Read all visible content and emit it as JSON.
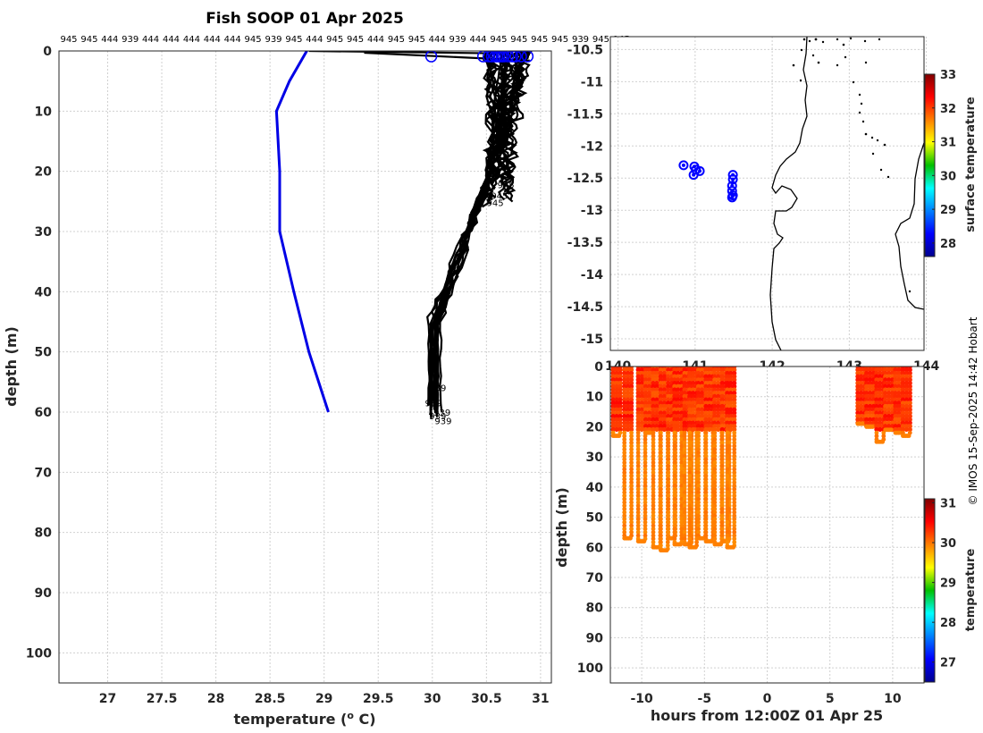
{
  "chart_data": [
    {
      "id": "profiles",
      "type": "line",
      "title": "Fish SOOP 01 Apr 2025",
      "xlabel": "temperature (",
      "xlabel_sup": "o",
      "xlabel_unit": " C)",
      "ylabel": "depth (m)",
      "xlim": [
        26.55,
        31.1
      ],
      "ylim": [
        0,
        105
      ],
      "xticks": [
        27,
        27.5,
        28,
        28.5,
        29,
        29.5,
        30,
        30.5,
        31
      ],
      "yticks": [
        0,
        10,
        20,
        30,
        40,
        50,
        60,
        70,
        80,
        90,
        100
      ],
      "top_labels": [
        "945",
        "945",
        "444",
        "939",
        "444",
        "444",
        "444",
        "444",
        "444",
        "945",
        "939",
        "945",
        "444",
        "945",
        "945",
        "444",
        "945",
        "945",
        "444",
        "939",
        "444",
        "945",
        "945",
        "945",
        "945",
        "939",
        "945",
        "945"
      ],
      "climatology": {
        "name": "climatology",
        "color": "#0000e6",
        "depth": [
          0,
          5,
          10,
          20,
          30,
          40,
          50,
          60
        ],
        "temp": [
          28.84,
          28.68,
          28.56,
          28.59,
          28.59,
          28.72,
          28.86,
          29.04
        ]
      },
      "profile_end_labels": [
        {
          "text": "939",
          "t": 30.05,
          "d": 56.5
        },
        {
          "text": "939",
          "t": 30.01,
          "d": 59
        },
        {
          "text": "939",
          "t": 30.09,
          "d": 60.6
        },
        {
          "text": "939",
          "t": 30.05,
          "d": 61.2
        },
        {
          "text": "939",
          "t": 30.1,
          "d": 62
        },
        {
          "text": "945",
          "t": 30.64,
          "d": 21.3
        },
        {
          "text": "945",
          "t": 30.68,
          "d": 22.8
        },
        {
          "text": "945",
          "t": 30.62,
          "d": 24.6
        },
        {
          "text": "945",
          "t": 30.58,
          "d": 25.8
        }
      ],
      "surface_markers_temp": [
        29.99,
        30.47,
        30.52,
        30.55,
        30.58,
        30.6,
        30.62,
        30.64,
        30.66,
        30.7,
        30.74,
        30.77,
        30.82,
        30.88
      ]
    },
    {
      "id": "map",
      "type": "scatter",
      "xlim": [
        139.9,
        143.97
      ],
      "ylim": [
        -15.18,
        -10.3
      ],
      "xticks": [
        140,
        141,
        142,
        143,
        144
      ],
      "yticks": [
        -10.5,
        -11,
        -11.5,
        -12,
        -12.5,
        -13,
        -13.5,
        -14,
        -14.5,
        -15
      ],
      "ytick_labels": [
        "-10.5",
        "-11",
        "-11.5",
        "-12",
        "-12.5",
        "-13",
        "-13.5",
        "-14",
        "-14.5",
        "-15"
      ],
      "xtick_labels": [
        "140",
        "141",
        "142",
        "143",
        "144"
      ],
      "track_points": [
        {
          "lon": 140.85,
          "lat": -12.3
        },
        {
          "lon": 140.99,
          "lat": -12.32
        },
        {
          "lon": 141.01,
          "lat": -12.37
        },
        {
          "lon": 141.06,
          "lat": -12.39
        },
        {
          "lon": 140.98,
          "lat": -12.45
        },
        {
          "lon": 141.49,
          "lat": -12.45
        },
        {
          "lon": 141.49,
          "lat": -12.52
        },
        {
          "lon": 141.48,
          "lat": -12.62
        },
        {
          "lon": 141.48,
          "lat": -12.7
        },
        {
          "lon": 141.49,
          "lat": -12.77
        },
        {
          "lon": 141.48,
          "lat": -12.8
        }
      ],
      "colorbar": {
        "label": "surface temperature",
        "range": [
          27.6,
          33
        ],
        "ticks": [
          28,
          29,
          30,
          31,
          32,
          33
        ]
      }
    },
    {
      "id": "section",
      "type": "scatter",
      "xlabel": "hours from 12:00Z 01 Apr 25",
      "ylabel": "depth (m)",
      "xlim": [
        -12.5,
        12.5
      ],
      "ylim": [
        0,
        105
      ],
      "xticks": [
        -10,
        -5,
        0,
        5,
        10
      ],
      "yticks": [
        0,
        10,
        20,
        30,
        40,
        50,
        60,
        70,
        80,
        90,
        100
      ],
      "casts": [
        {
          "t": -12.0,
          "max_depth": 23
        },
        {
          "t": -11.1,
          "max_depth": 57
        },
        {
          "t": -10.0,
          "max_depth": 58
        },
        {
          "t": -9.4,
          "max_depth": 22
        },
        {
          "t": -8.8,
          "max_depth": 60
        },
        {
          "t": -8.2,
          "max_depth": 61
        },
        {
          "t": -7.6,
          "max_depth": 57
        },
        {
          "t": -7.1,
          "max_depth": 59
        },
        {
          "t": -6.3,
          "max_depth": 59
        },
        {
          "t": -5.9,
          "max_depth": 60
        },
        {
          "t": -5.2,
          "max_depth": 57
        },
        {
          "t": -4.6,
          "max_depth": 58
        },
        {
          "t": -3.9,
          "max_depth": 59
        },
        {
          "t": -3.3,
          "max_depth": 58
        },
        {
          "t": -2.9,
          "max_depth": 60
        },
        {
          "t": 7.5,
          "max_depth": 19
        },
        {
          "t": 8.2,
          "max_depth": 20
        },
        {
          "t": 9.0,
          "max_depth": 25
        },
        {
          "t": 9.7,
          "max_depth": 21
        },
        {
          "t": 10.5,
          "max_depth": 22
        },
        {
          "t": 11.1,
          "max_depth": 23
        }
      ],
      "colorbar": {
        "label": "temperature",
        "range": [
          26.5,
          31.1
        ],
        "ticks": [
          27,
          28,
          29,
          30,
          31
        ]
      }
    }
  ],
  "credit": "© IMOS 15-Sep-2025 14:42 Hobart"
}
